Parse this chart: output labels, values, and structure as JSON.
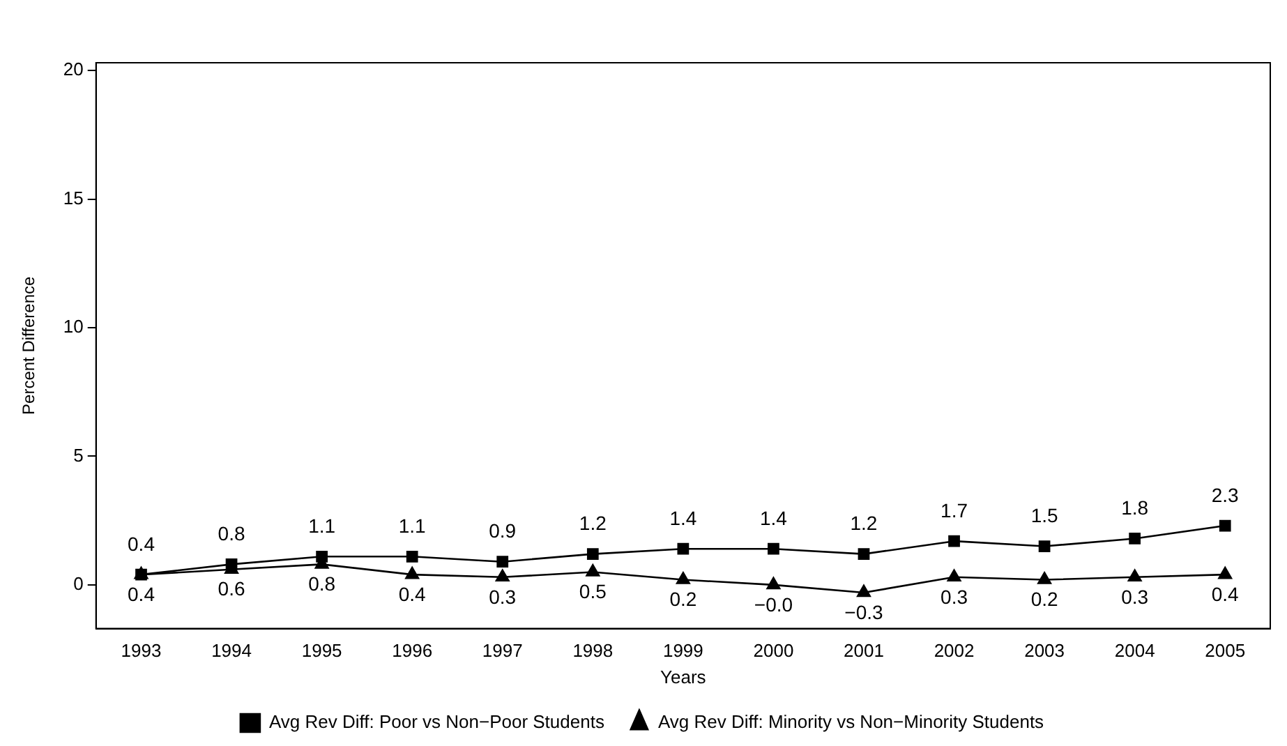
{
  "chart_data": {
    "type": "line",
    "xlabel": "Years",
    "ylabel": "Percent Difference",
    "categories": [
      "1993",
      "1994",
      "1995",
      "1996",
      "1997",
      "1998",
      "1999",
      "2000",
      "2001",
      "2002",
      "2003",
      "2004",
      "2005"
    ],
    "series": [
      {
        "name": "Avg Rev Diff: Poor vs Non−Poor Students",
        "color": "#000000",
        "marker": "square",
        "values": [
          0.4,
          0.8,
          1.1,
          1.1,
          0.9,
          1.2,
          1.4,
          1.4,
          1.2,
          1.7,
          1.5,
          1.8,
          2.3
        ],
        "value_labels": [
          "0.4",
          "0.8",
          "1.1",
          "1.1",
          "0.9",
          "1.2",
          "1.4",
          "1.4",
          "1.2",
          "1.7",
          "1.5",
          "1.8",
          "2.3"
        ]
      },
      {
        "name": "Avg Rev Diff: Minority vs Non−Minority Students",
        "color": "#000000",
        "marker": "triangle",
        "values": [
          0.4,
          0.6,
          0.8,
          0.4,
          0.3,
          0.5,
          0.2,
          0.0,
          -0.3,
          0.3,
          0.2,
          0.3,
          0.4
        ],
        "value_labels": [
          "0.4",
          "0.6",
          "0.8",
          "0.4",
          "0.3",
          "0.5",
          "0.2",
          "−0.0",
          "−0.3",
          "0.3",
          "0.2",
          "0.3",
          "0.4"
        ]
      }
    ],
    "ylim": [
      -1.7,
      20.3
    ],
    "yticks": [
      0,
      5,
      10,
      15,
      20
    ],
    "grid": false,
    "legend": "bottom",
    "line_style": "solid"
  }
}
